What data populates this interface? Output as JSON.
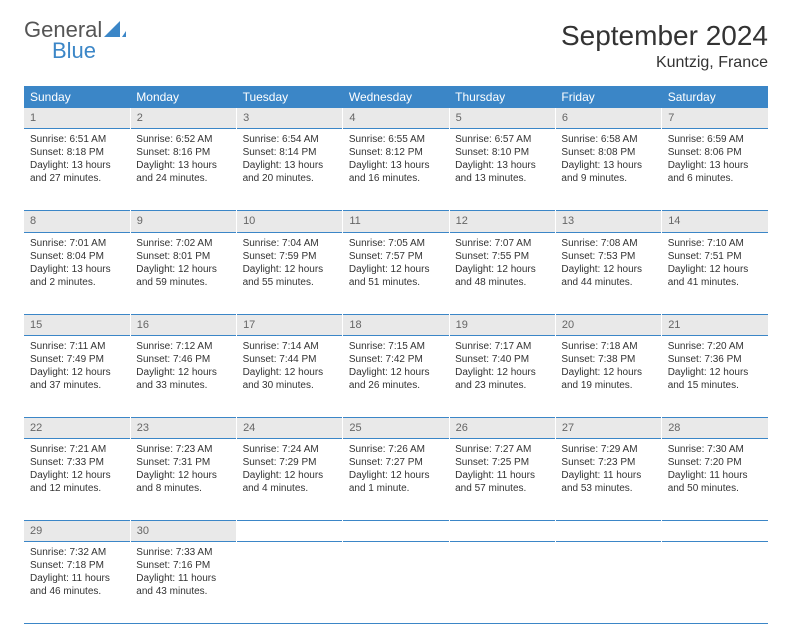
{
  "brand": {
    "part1": "General",
    "part2": "Blue"
  },
  "title": "September 2024",
  "subtitle": "Kuntzig, France",
  "colors": {
    "header_bg": "#3b86c7",
    "header_text": "#ffffff",
    "daynum_bg": "#e9e9e9",
    "daynum_text": "#666666",
    "body_text": "#333333",
    "rule": "#3b86c7",
    "brand_gray": "#555555",
    "brand_blue": "#3b86c7"
  },
  "weekdays": [
    "Sunday",
    "Monday",
    "Tuesday",
    "Wednesday",
    "Thursday",
    "Friday",
    "Saturday"
  ],
  "weeks": [
    {
      "nums": [
        "1",
        "2",
        "3",
        "4",
        "5",
        "6",
        "7"
      ],
      "cells": [
        {
          "sunrise": "6:51 AM",
          "sunset": "8:18 PM",
          "day_h": 13,
          "day_m": 27
        },
        {
          "sunrise": "6:52 AM",
          "sunset": "8:16 PM",
          "day_h": 13,
          "day_m": 24
        },
        {
          "sunrise": "6:54 AM",
          "sunset": "8:14 PM",
          "day_h": 13,
          "day_m": 20
        },
        {
          "sunrise": "6:55 AM",
          "sunset": "8:12 PM",
          "day_h": 13,
          "day_m": 16
        },
        {
          "sunrise": "6:57 AM",
          "sunset": "8:10 PM",
          "day_h": 13,
          "day_m": 13
        },
        {
          "sunrise": "6:58 AM",
          "sunset": "8:08 PM",
          "day_h": 13,
          "day_m": 9
        },
        {
          "sunrise": "6:59 AM",
          "sunset": "8:06 PM",
          "day_h": 13,
          "day_m": 6
        }
      ]
    },
    {
      "nums": [
        "8",
        "9",
        "10",
        "11",
        "12",
        "13",
        "14"
      ],
      "cells": [
        {
          "sunrise": "7:01 AM",
          "sunset": "8:04 PM",
          "day_h": 13,
          "day_m": 2
        },
        {
          "sunrise": "7:02 AM",
          "sunset": "8:01 PM",
          "day_h": 12,
          "day_m": 59
        },
        {
          "sunrise": "7:04 AM",
          "sunset": "7:59 PM",
          "day_h": 12,
          "day_m": 55
        },
        {
          "sunrise": "7:05 AM",
          "sunset": "7:57 PM",
          "day_h": 12,
          "day_m": 51
        },
        {
          "sunrise": "7:07 AM",
          "sunset": "7:55 PM",
          "day_h": 12,
          "day_m": 48
        },
        {
          "sunrise": "7:08 AM",
          "sunset": "7:53 PM",
          "day_h": 12,
          "day_m": 44
        },
        {
          "sunrise": "7:10 AM",
          "sunset": "7:51 PM",
          "day_h": 12,
          "day_m": 41
        }
      ]
    },
    {
      "nums": [
        "15",
        "16",
        "17",
        "18",
        "19",
        "20",
        "21"
      ],
      "cells": [
        {
          "sunrise": "7:11 AM",
          "sunset": "7:49 PM",
          "day_h": 12,
          "day_m": 37
        },
        {
          "sunrise": "7:12 AM",
          "sunset": "7:46 PM",
          "day_h": 12,
          "day_m": 33
        },
        {
          "sunrise": "7:14 AM",
          "sunset": "7:44 PM",
          "day_h": 12,
          "day_m": 30
        },
        {
          "sunrise": "7:15 AM",
          "sunset": "7:42 PM",
          "day_h": 12,
          "day_m": 26
        },
        {
          "sunrise": "7:17 AM",
          "sunset": "7:40 PM",
          "day_h": 12,
          "day_m": 23
        },
        {
          "sunrise": "7:18 AM",
          "sunset": "7:38 PM",
          "day_h": 12,
          "day_m": 19
        },
        {
          "sunrise": "7:20 AM",
          "sunset": "7:36 PM",
          "day_h": 12,
          "day_m": 15
        }
      ]
    },
    {
      "nums": [
        "22",
        "23",
        "24",
        "25",
        "26",
        "27",
        "28"
      ],
      "cells": [
        {
          "sunrise": "7:21 AM",
          "sunset": "7:33 PM",
          "day_h": 12,
          "day_m": 12
        },
        {
          "sunrise": "7:23 AM",
          "sunset": "7:31 PM",
          "day_h": 12,
          "day_m": 8
        },
        {
          "sunrise": "7:24 AM",
          "sunset": "7:29 PM",
          "day_h": 12,
          "day_m": 4
        },
        {
          "sunrise": "7:26 AM",
          "sunset": "7:27 PM",
          "day_h": 12,
          "day_m": 1
        },
        {
          "sunrise": "7:27 AM",
          "sunset": "7:25 PM",
          "day_h": 11,
          "day_m": 57
        },
        {
          "sunrise": "7:29 AM",
          "sunset": "7:23 PM",
          "day_h": 11,
          "day_m": 53
        },
        {
          "sunrise": "7:30 AM",
          "sunset": "7:20 PM",
          "day_h": 11,
          "day_m": 50
        }
      ]
    },
    {
      "nums": [
        "29",
        "30",
        "",
        "",
        "",
        "",
        ""
      ],
      "cells": [
        {
          "sunrise": "7:32 AM",
          "sunset": "7:18 PM",
          "day_h": 11,
          "day_m": 46
        },
        {
          "sunrise": "7:33 AM",
          "sunset": "7:16 PM",
          "day_h": 11,
          "day_m": 43
        },
        null,
        null,
        null,
        null,
        null
      ]
    }
  ]
}
